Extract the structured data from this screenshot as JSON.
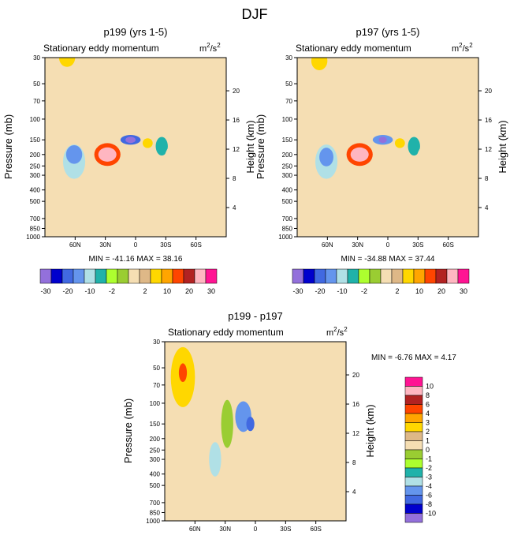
{
  "figure_title": "DJF",
  "palette": {
    "colors12": [
      "#9370DB",
      "#0000CD",
      "#4169E1",
      "#6495ED",
      "#B0E0E6",
      "#20B2AA",
      "#ADFF2F",
      "#9ACD32",
      "#F5DEB3",
      "#DEB887",
      "#FFD700",
      "#FFA500",
      "#FF4500",
      "#B22222",
      "#FFB6C1",
      "#FF1493"
    ],
    "colors9": [
      "#9370DB",
      "#0000CD",
      "#4169E1",
      "#6495ED",
      "#B0E0E6",
      "#20B2AA",
      "#ADFF2F",
      "#9ACD32",
      "#F5DEB3",
      "#DEB887",
      "#FFD700",
      "#FFA500",
      "#FF4500",
      "#B22222",
      "#FFB6C1",
      "#FF1493"
    ]
  },
  "chart_data": [
    {
      "type": "contour",
      "title": "p199 (yrs 1-5)",
      "subtitle": "Stationary eddy momentum",
      "units": "m²/s²",
      "units_base": "m",
      "units_sup1": "2",
      "units_mid": "/s",
      "units_sup2": "2",
      "ylabel": "Pressure (mb)",
      "y2label": "Height (km)",
      "pressure_ticks": [
        "30",
        "50",
        "70",
        "100",
        "150",
        "200",
        "250",
        "300",
        "400",
        "500",
        "700",
        "850",
        "1000"
      ],
      "pressure_values": [
        30,
        50,
        70,
        100,
        150,
        200,
        250,
        300,
        400,
        500,
        700,
        850,
        1000
      ],
      "height_ticks": [
        "20",
        "16",
        "12",
        "8",
        "4"
      ],
      "height_values": [
        20,
        16,
        12,
        8,
        4
      ],
      "lat_ticks": [
        "60N",
        "30N",
        "0",
        "30S",
        "60S"
      ],
      "lat_values": [
        60,
        30,
        0,
        -30,
        -60
      ],
      "xlim": [
        90,
        -90
      ],
      "stats_text": "MIN = -41.16  MAX =  38.16",
      "min": -41.16,
      "max": 38.16,
      "levels": [
        -30,
        -25,
        -20,
        -15,
        -10,
        -5,
        -2,
        0,
        2,
        5,
        10,
        15,
        20,
        25,
        30
      ],
      "colorbar_labels": [
        "-30",
        "-20",
        "-10",
        "-2",
        "2",
        "10",
        "20",
        "30"
      ],
      "features": [
        {
          "lat": 61,
          "p": 230,
          "rx": 11,
          "ry": 1.4,
          "val": -12
        },
        {
          "lat": 61,
          "p": 200,
          "rx": 8,
          "ry": 1.2,
          "val": -18
        },
        {
          "lat": 28,
          "p": 200,
          "rx": 13,
          "ry": 1.25,
          "val": 16
        },
        {
          "lat": 28,
          "p": 200,
          "rx": 9,
          "ry": 1.15,
          "val": 28
        },
        {
          "lat": 5,
          "p": 150,
          "rx": 10,
          "ry": 1.1,
          "val": -22
        },
        {
          "lat": 5,
          "p": 150,
          "rx": 5,
          "ry": 1.05,
          "val": -41
        },
        {
          "lat": -12,
          "p": 160,
          "rx": 5,
          "ry": 1.1,
          "val": 7
        },
        {
          "lat": -26,
          "p": 170,
          "rx": 6,
          "ry": 1.2,
          "val": -9
        },
        {
          "lat": 68,
          "p": 30,
          "rx": 8,
          "ry": 1.2,
          "val": 8
        },
        {
          "lat": -40,
          "p": 300,
          "rx": 14,
          "ry": 1.9,
          "val": 0
        }
      ]
    },
    {
      "type": "contour",
      "title": "p197 (yrs 1-5)",
      "subtitle": "Stationary eddy momentum",
      "units": "m²/s²",
      "units_base": "m",
      "units_sup1": "2",
      "units_mid": "/s",
      "units_sup2": "2",
      "ylabel": "Pressure (mb)",
      "y2label": "Height (km)",
      "pressure_ticks": [
        "30",
        "50",
        "70",
        "100",
        "150",
        "200",
        "250",
        "300",
        "400",
        "500",
        "700",
        "850",
        "1000"
      ],
      "pressure_values": [
        30,
        50,
        70,
        100,
        150,
        200,
        250,
        300,
        400,
        500,
        700,
        850,
        1000
      ],
      "height_ticks": [
        "20",
        "16",
        "12",
        "8",
        "4"
      ],
      "height_values": [
        20,
        16,
        12,
        8,
        4
      ],
      "lat_ticks": [
        "60N",
        "30N",
        "0",
        "30S",
        "60S"
      ],
      "lat_values": [
        60,
        30,
        0,
        -30,
        -60
      ],
      "xlim": [
        90,
        -90
      ],
      "stats_text": "MIN = -34.88  MAX =  37.44",
      "min": -34.88,
      "max": 37.44,
      "levels": [
        -30,
        -25,
        -20,
        -15,
        -10,
        -5,
        -2,
        0,
        2,
        5,
        10,
        15,
        20,
        25,
        30
      ],
      "colorbar_labels": [
        "-30",
        "-20",
        "-10",
        "-2",
        "2",
        "10",
        "20",
        "30"
      ],
      "features": [
        {
          "lat": 61,
          "p": 230,
          "rx": 11,
          "ry": 1.4,
          "val": -12
        },
        {
          "lat": 61,
          "p": 210,
          "rx": 7,
          "ry": 1.2,
          "val": -18
        },
        {
          "lat": 28,
          "p": 200,
          "rx": 13,
          "ry": 1.25,
          "val": 16
        },
        {
          "lat": 28,
          "p": 200,
          "rx": 9,
          "ry": 1.15,
          "val": 28
        },
        {
          "lat": 5,
          "p": 150,
          "rx": 10,
          "ry": 1.1,
          "val": -20
        },
        {
          "lat": 5,
          "p": 150,
          "rx": 4,
          "ry": 1.05,
          "val": -34
        },
        {
          "lat": -12,
          "p": 160,
          "rx": 5,
          "ry": 1.1,
          "val": 7
        },
        {
          "lat": -26,
          "p": 170,
          "rx": 6,
          "ry": 1.2,
          "val": -7
        },
        {
          "lat": 68,
          "p": 32,
          "rx": 8,
          "ry": 1.2,
          "val": 6
        },
        {
          "lat": -40,
          "p": 300,
          "rx": 14,
          "ry": 1.9,
          "val": 0
        }
      ]
    },
    {
      "type": "contour",
      "title": "p199 - p197",
      "subtitle": "Stationary eddy momentum",
      "units": "m²/s²",
      "units_base": "m",
      "units_sup1": "2",
      "units_mid": "/s",
      "units_sup2": "2",
      "ylabel": "Pressure (mb)",
      "y2label": "Height (km)",
      "pressure_ticks": [
        "30",
        "50",
        "70",
        "100",
        "150",
        "200",
        "250",
        "300",
        "400",
        "500",
        "700",
        "850",
        "1000"
      ],
      "pressure_values": [
        30,
        50,
        70,
        100,
        150,
        200,
        250,
        300,
        400,
        500,
        700,
        850,
        1000
      ],
      "height_ticks": [
        "20",
        "16",
        "12",
        "8",
        "4"
      ],
      "height_values": [
        20,
        16,
        12,
        8,
        4
      ],
      "lat_ticks": [
        "60N",
        "30N",
        "0",
        "30S",
        "60S"
      ],
      "lat_values": [
        60,
        30,
        0,
        -30,
        -60
      ],
      "xlim": [
        90,
        -90
      ],
      "stats_text": "MIN =  -6.76  MAX =   4.17",
      "min": -6.76,
      "max": 4.17,
      "levels": [
        -10,
        -8,
        -6,
        -4,
        -3,
        -2,
        -1,
        0,
        1,
        2,
        3,
        4,
        6,
        8,
        10
      ],
      "colorbar_labels": [
        "10",
        "8",
        "6",
        "4",
        "3",
        "2",
        "1",
        "0",
        "-1",
        "-2",
        "-3",
        "-4",
        "-6",
        "-8",
        "-10"
      ],
      "features": [
        {
          "lat": 72,
          "p": 60,
          "rx": 12,
          "ry": 1.8,
          "val": 2.5
        },
        {
          "lat": 72,
          "p": 55,
          "rx": 4,
          "ry": 1.2,
          "val": 4.2
        },
        {
          "lat": 55,
          "p": 200,
          "rx": 10,
          "ry": 2.2,
          "val": 0.5
        },
        {
          "lat": 40,
          "p": 300,
          "rx": 6,
          "ry": 1.4,
          "val": -3.2
        },
        {
          "lat": 12,
          "p": 130,
          "rx": 8,
          "ry": 1.35,
          "val": -4.5
        },
        {
          "lat": 5,
          "p": 150,
          "rx": 4,
          "ry": 1.15,
          "val": -6.7
        },
        {
          "lat": 28,
          "p": 150,
          "rx": 6,
          "ry": 1.6,
          "val": -1
        },
        {
          "lat": -10,
          "p": 300,
          "rx": 8,
          "ry": 2.2,
          "val": 0.5
        }
      ]
    }
  ]
}
